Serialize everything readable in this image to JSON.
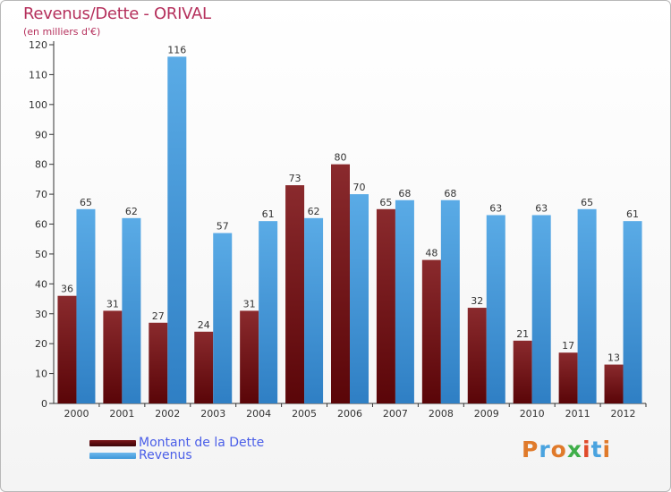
{
  "title": "Revenus/Dette - ORIVAL",
  "subtitle": "(en milliers d'€)",
  "colors": {
    "debt": "#7a1518",
    "revenue": "#3d97d9",
    "title": "#b5305c",
    "legend_text": "#4a5ee8"
  },
  "logo": {
    "text": "Proxiti",
    "letter_colors": [
      "#e07a2a",
      "#4aa3df",
      "#e07a2a",
      "#3fae49",
      "#e04a2a",
      "#4aa3df",
      "#e07a2a"
    ]
  },
  "chart_data": {
    "type": "bar",
    "title": "Revenus/Dette - ORIVAL",
    "subtitle": "(en milliers d'€)",
    "categories": [
      "2000",
      "2001",
      "2002",
      "2003",
      "2004",
      "2005",
      "2006",
      "2007",
      "2008",
      "2009",
      "2010",
      "2011",
      "2012"
    ],
    "series": [
      {
        "name": "Montant de la Dette",
        "color": "#7a1518",
        "values": [
          36,
          31,
          27,
          24,
          31,
          73,
          80,
          65,
          48,
          32,
          21,
          17,
          13
        ]
      },
      {
        "name": "Revenus",
        "color": "#3d97d9",
        "values": [
          65,
          62,
          116,
          57,
          61,
          62,
          70,
          68,
          68,
          63,
          63,
          65,
          61
        ]
      }
    ],
    "ylim": [
      0,
      120
    ],
    "yticks": [
      0,
      10,
      20,
      30,
      40,
      50,
      60,
      70,
      80,
      90,
      100,
      110,
      120
    ],
    "grid": false,
    "legend_position": "bottom-left"
  }
}
